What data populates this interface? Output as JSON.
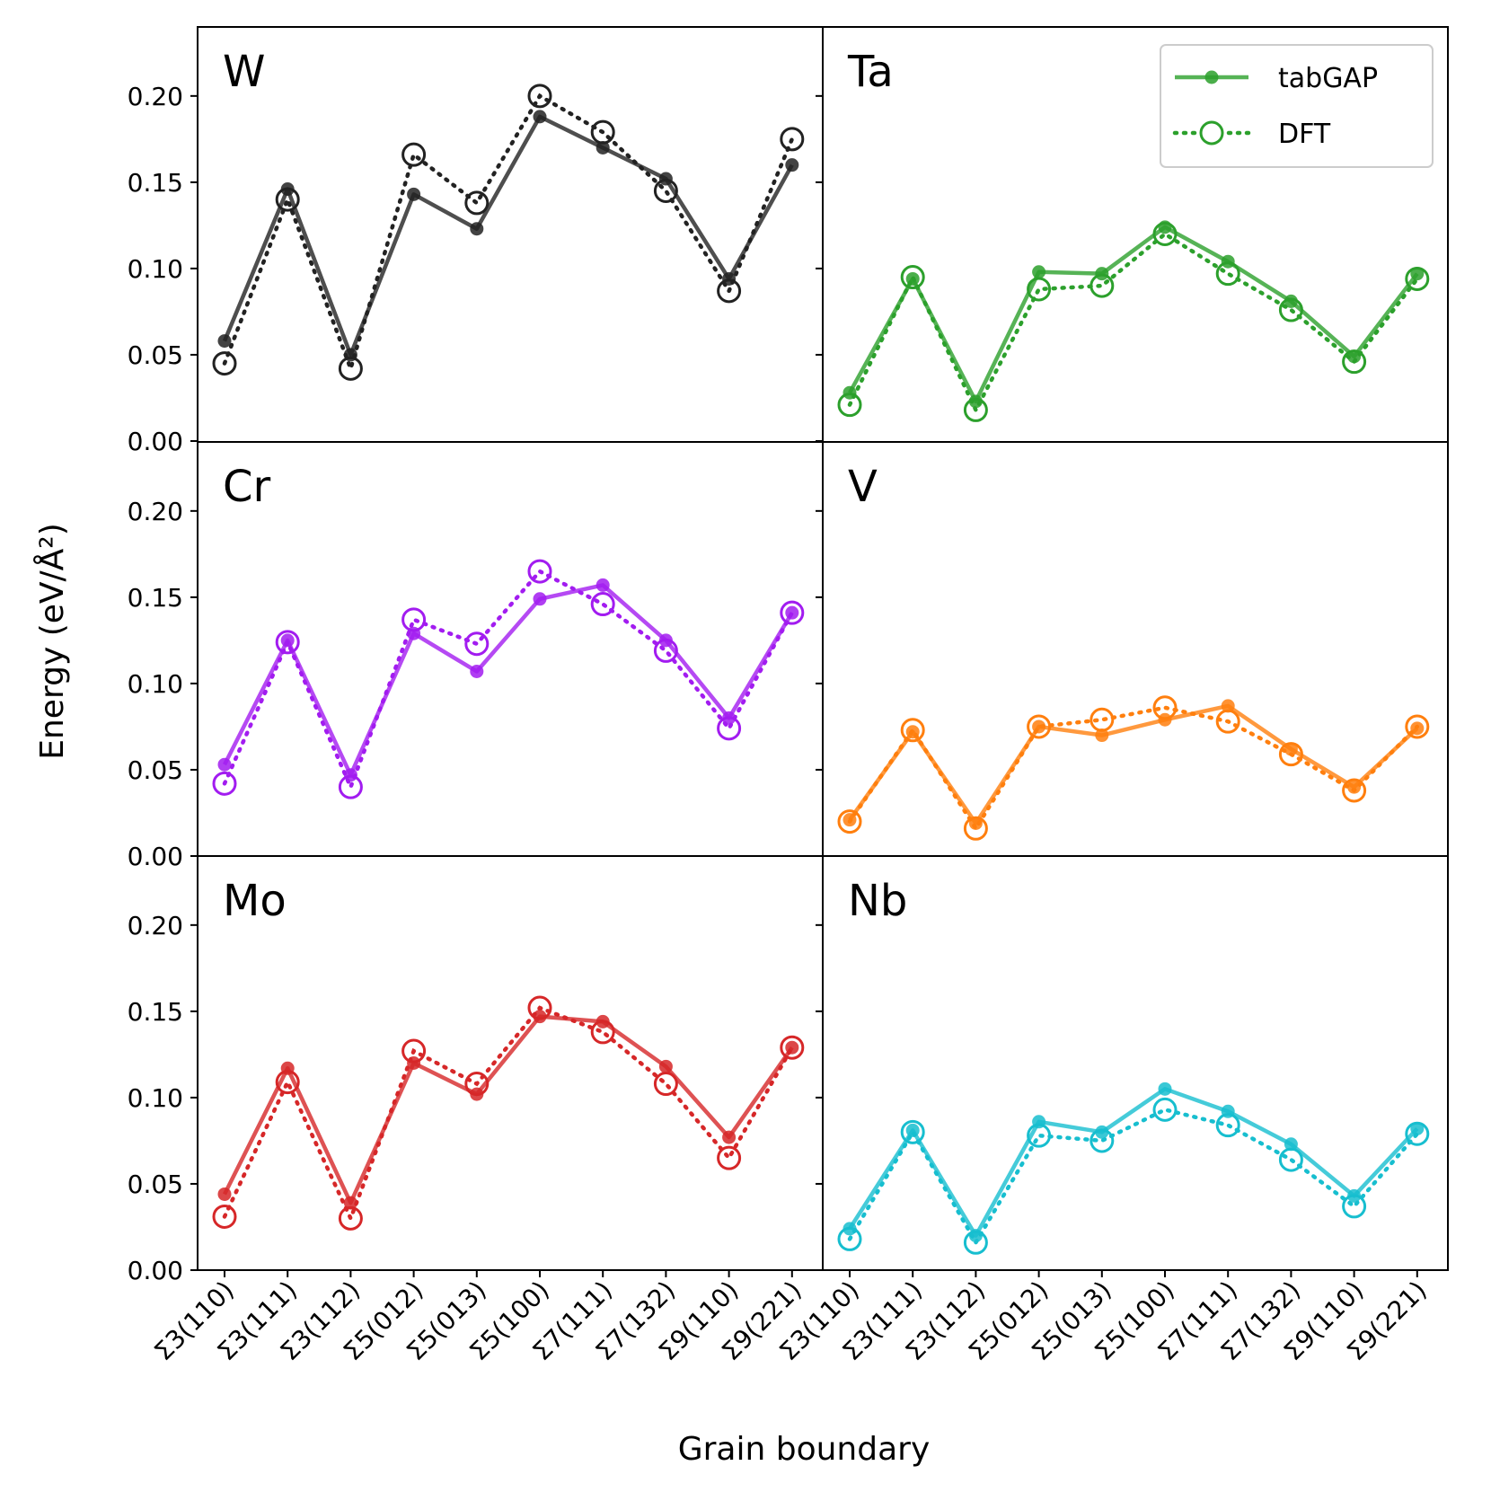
{
  "chart_data": {
    "type": "line",
    "xlabel": "Grain boundary",
    "ylabel": "Energy (eV/Å²)",
    "ylim": [
      0,
      0.24
    ],
    "yticks": [
      "0.00",
      "0.05",
      "0.10",
      "0.15",
      "0.20"
    ],
    "categories": [
      "Σ3(110)",
      "Σ3(111)",
      "Σ3(112)",
      "Σ5(012)",
      "Σ5(013)",
      "Σ5(100)",
      "Σ7(111)",
      "Σ7(132)",
      "Σ9(110)",
      "Σ9(221)"
    ],
    "legend": {
      "position": "top-right",
      "tabgap_label": "tabGAP",
      "dft_label": "DFT",
      "color": "#2ca02c"
    },
    "panels": [
      {
        "name": "W",
        "color": "#222222",
        "tabgap": [
          0.058,
          0.146,
          0.05,
          0.143,
          0.123,
          0.188,
          0.17,
          0.152,
          0.094,
          0.16
        ],
        "dft": [
          0.045,
          0.14,
          0.042,
          0.166,
          0.138,
          0.2,
          0.179,
          0.145,
          0.087,
          0.175
        ]
      },
      {
        "name": "Ta",
        "color": "#2ca02c",
        "tabgap": [
          0.028,
          0.094,
          0.023,
          0.098,
          0.097,
          0.124,
          0.104,
          0.081,
          0.049,
          0.097
        ],
        "dft": [
          0.021,
          0.095,
          0.018,
          0.088,
          0.09,
          0.12,
          0.097,
          0.076,
          0.046,
          0.094
        ]
      },
      {
        "name": "Cr",
        "color": "#a21cf0",
        "tabgap": [
          0.053,
          0.125,
          0.047,
          0.129,
          0.107,
          0.149,
          0.157,
          0.125,
          0.08,
          0.141
        ],
        "dft": [
          0.042,
          0.124,
          0.04,
          0.137,
          0.123,
          0.165,
          0.146,
          0.119,
          0.074,
          0.141
        ]
      },
      {
        "name": "V",
        "color": "#ff7f0e",
        "tabgap": [
          0.021,
          0.072,
          0.019,
          0.075,
          0.07,
          0.079,
          0.087,
          0.062,
          0.04,
          0.074
        ],
        "dft": [
          0.02,
          0.073,
          0.016,
          0.075,
          0.079,
          0.086,
          0.078,
          0.059,
          0.038,
          0.075
        ]
      },
      {
        "name": "Mo",
        "color": "#d62728",
        "tabgap": [
          0.044,
          0.117,
          0.039,
          0.12,
          0.102,
          0.147,
          0.144,
          0.118,
          0.077,
          0.129
        ],
        "dft": [
          0.031,
          0.109,
          0.03,
          0.127,
          0.108,
          0.152,
          0.138,
          0.108,
          0.065,
          0.129
        ]
      },
      {
        "name": "Nb",
        "color": "#17becf",
        "tabgap": [
          0.024,
          0.081,
          0.02,
          0.086,
          0.08,
          0.105,
          0.092,
          0.073,
          0.043,
          0.082
        ],
        "dft": [
          0.018,
          0.08,
          0.016,
          0.078,
          0.075,
          0.093,
          0.084,
          0.064,
          0.037,
          0.079
        ]
      }
    ]
  }
}
